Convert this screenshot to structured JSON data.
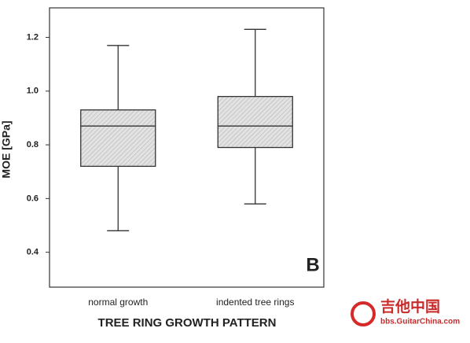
{
  "chart_data": {
    "type": "box",
    "categories": [
      "normal growth",
      "indented tree rings"
    ],
    "boxes": [
      {
        "min": 0.48,
        "q1": 0.72,
        "median": 0.87,
        "q3": 0.93,
        "max": 1.17
      },
      {
        "min": 0.58,
        "q1": 0.79,
        "median": 0.87,
        "q3": 0.98,
        "max": 1.23
      }
    ],
    "color": "#d9d9d9",
    "ylabel": "MOE [GPa]",
    "xlabel": "TREE RING GROWTH PATTERN",
    "annotation": "B",
    "ylim": [
      0.27,
      1.31
    ],
    "yticks": [
      0.4,
      0.6,
      0.8,
      {
        "value": 1,
        "label": "1.0"
      },
      1.2
    ]
  },
  "watermark": {
    "title": "吉他中国",
    "url": "bbs.GuitarChina.com"
  }
}
